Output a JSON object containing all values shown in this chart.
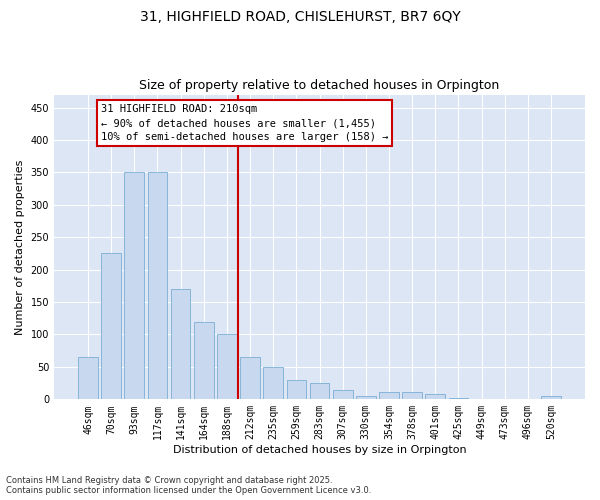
{
  "title_line1": "31, HIGHFIELD ROAD, CHISLEHURST, BR7 6QY",
  "title_line2": "Size of property relative to detached houses in Orpington",
  "xlabel": "Distribution of detached houses by size in Orpington",
  "ylabel": "Number of detached properties",
  "categories": [
    "46sqm",
    "70sqm",
    "93sqm",
    "117sqm",
    "141sqm",
    "164sqm",
    "188sqm",
    "212sqm",
    "235sqm",
    "259sqm",
    "283sqm",
    "307sqm",
    "330sqm",
    "354sqm",
    "378sqm",
    "401sqm",
    "425sqm",
    "449sqm",
    "473sqm",
    "496sqm",
    "520sqm"
  ],
  "values": [
    65,
    225,
    350,
    350,
    170,
    120,
    100,
    65,
    50,
    30,
    25,
    15,
    5,
    12,
    12,
    8,
    2,
    1,
    1,
    1,
    5
  ],
  "bar_color": "#c8d9ef",
  "bar_edge_color": "#7bafd4",
  "vline_x_index": 7,
  "vline_color": "#cc0000",
  "annotation_text": "31 HIGHFIELD ROAD: 210sqm\n← 90% of detached houses are smaller (1,455)\n10% of semi-detached houses are larger (158) →",
  "annotation_box_edge": "#cc0000",
  "ylim": [
    0,
    470
  ],
  "yticks": [
    0,
    50,
    100,
    150,
    200,
    250,
    300,
    350,
    400,
    450
  ],
  "background_color": "#dce6f5",
  "footer_text": "Contains HM Land Registry data © Crown copyright and database right 2025.\nContains public sector information licensed under the Open Government Licence v3.0.",
  "title_fontsize": 10,
  "subtitle_fontsize": 9,
  "axis_label_fontsize": 8,
  "tick_fontsize": 7,
  "annotation_fontsize": 7.5
}
